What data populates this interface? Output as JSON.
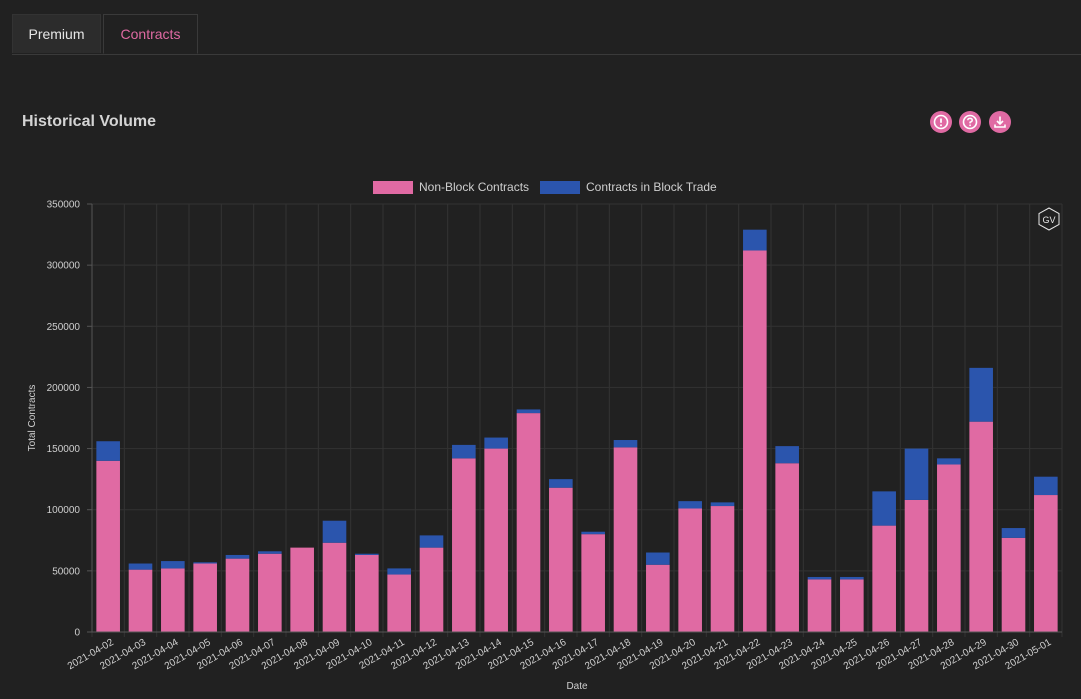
{
  "tabs": [
    {
      "label": "Premium",
      "active": false
    },
    {
      "label": "Contracts",
      "active": true
    }
  ],
  "header": {
    "title": "Historical Volume",
    "actions": [
      {
        "icon": "info-icon"
      },
      {
        "icon": "help-icon"
      },
      {
        "icon": "download-icon"
      }
    ]
  },
  "watermark": "GV",
  "colors": {
    "accent": "#e06aa3",
    "non_block": "#e06aa3",
    "block": "#2b55ad",
    "background": "#212121"
  },
  "chart_data": {
    "type": "bar",
    "stacked": true,
    "xlabel": "Date",
    "ylabel": "Total Contracts",
    "ylim": [
      0,
      350000
    ],
    "yticks": [
      0,
      50000,
      100000,
      150000,
      200000,
      250000,
      300000,
      350000
    ],
    "legend_position": "top-center",
    "categories": [
      "2021-04-02",
      "2021-04-03",
      "2021-04-04",
      "2021-04-05",
      "2021-04-06",
      "2021-04-07",
      "2021-04-08",
      "2021-04-09",
      "2021-04-10",
      "2021-04-11",
      "2021-04-12",
      "2021-04-13",
      "2021-04-14",
      "2021-04-15",
      "2021-04-16",
      "2021-04-17",
      "2021-04-18",
      "2021-04-19",
      "2021-04-20",
      "2021-04-21",
      "2021-04-22",
      "2021-04-23",
      "2021-04-24",
      "2021-04-25",
      "2021-04-26",
      "2021-04-27",
      "2021-04-28",
      "2021-04-29",
      "2021-04-30",
      "2021-05-01"
    ],
    "series": [
      {
        "name": "Non-Block Contracts",
        "color": "#e06aa3",
        "values": [
          140000,
          51000,
          52000,
          56000,
          60000,
          64000,
          69000,
          73000,
          63000,
          47000,
          69000,
          142000,
          150000,
          179000,
          118000,
          80000,
          151000,
          55000,
          101000,
          103000,
          312000,
          138000,
          43000,
          43000,
          87000,
          108000,
          137000,
          172000,
          77000,
          112000
        ]
      },
      {
        "name": "Contracts in Block Trade",
        "color": "#2b55ad",
        "values": [
          16000,
          5000,
          6000,
          1000,
          3000,
          2000,
          0,
          18000,
          1000,
          5000,
          10000,
          11000,
          9000,
          3000,
          7000,
          2000,
          6000,
          10000,
          6000,
          3000,
          17000,
          14000,
          2000,
          2000,
          28000,
          42000,
          5000,
          44000,
          8000,
          15000
        ]
      }
    ]
  }
}
